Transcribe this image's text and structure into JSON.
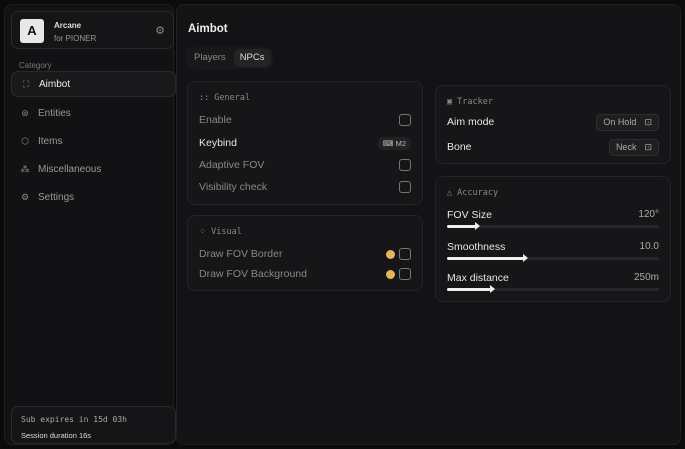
{
  "brand": {
    "logo_letter": "A",
    "name": "Arcane",
    "subtitle": "for PIONER",
    "icon": "gear-icon"
  },
  "sidebar": {
    "category_label": "Category",
    "items": [
      {
        "label": "Aimbot",
        "icon": "crosshair-icon",
        "active": true
      },
      {
        "label": "Entities",
        "icon": "entities-icon",
        "active": false
      },
      {
        "label": "Items",
        "icon": "box-icon",
        "active": false
      },
      {
        "label": "Miscellaneous",
        "icon": "misc-icon",
        "active": false
      },
      {
        "label": "Settings",
        "icon": "gear-icon",
        "active": false
      }
    ]
  },
  "footer": {
    "subscription": "Sub expires in 15d 03h",
    "session": "Session duration 16s"
  },
  "main": {
    "title": "Aimbot",
    "tabs": [
      {
        "label": "Players",
        "active": false
      },
      {
        "label": "NPCs",
        "active": true
      }
    ]
  },
  "general": {
    "title": "General",
    "enable": "Enable",
    "keybind": "Keybind",
    "keybind_value": "M2",
    "adaptive_fov": "Adaptive FOV",
    "visibility_check": "Visibility check"
  },
  "visual": {
    "title": "Visual",
    "draw_fov_border": "Draw FOV Border",
    "draw_fov_background": "Draw FOV Background",
    "color": "#e4b55a"
  },
  "tracker": {
    "title": "Tracker",
    "aim_mode": "Aim mode",
    "aim_mode_value": "On Hold",
    "bone": "Bone",
    "bone_value": "Neck"
  },
  "accuracy": {
    "title": "Accuracy",
    "sliders": [
      {
        "label": "FOV Size",
        "value": "120°",
        "fraction": 0.14
      },
      {
        "label": "Smoothness",
        "value": "10.0",
        "fraction": 0.37
      },
      {
        "label": "Max distance",
        "value": "250m",
        "fraction": 0.21
      }
    ]
  }
}
